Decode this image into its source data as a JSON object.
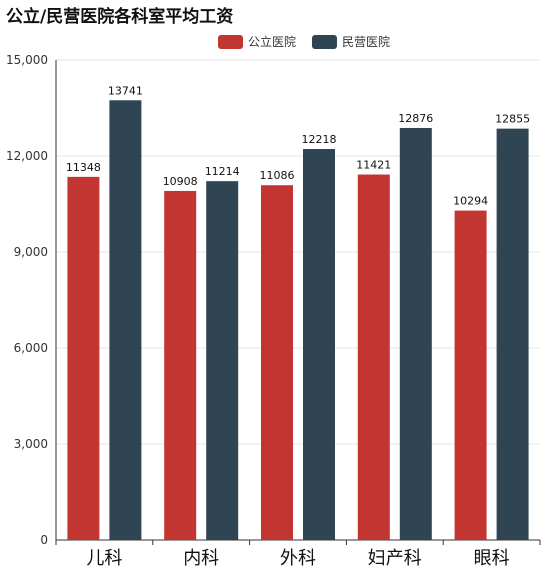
{
  "chart_data": {
    "type": "bar",
    "title": "公立/民营医院各科室平均工资",
    "categories": [
      "儿科",
      "内科",
      "外科",
      "妇产科",
      "眼科"
    ],
    "series": [
      {
        "name": "公立医院",
        "color": "#c23531",
        "values": [
          11348,
          10908,
          11086,
          11421,
          10294
        ]
      },
      {
        "name": "民营医院",
        "color": "#2f4554",
        "values": [
          13741,
          11214,
          12218,
          12876,
          12855
        ]
      }
    ],
    "ylim": [
      0,
      15000
    ],
    "yticks": [
      0,
      3000,
      6000,
      9000,
      12000,
      15000
    ],
    "ytick_labels": [
      "0",
      "3,000",
      "6,000",
      "9,000",
      "12,000",
      "15,000"
    ],
    "grid": true,
    "legend": "top-center"
  }
}
